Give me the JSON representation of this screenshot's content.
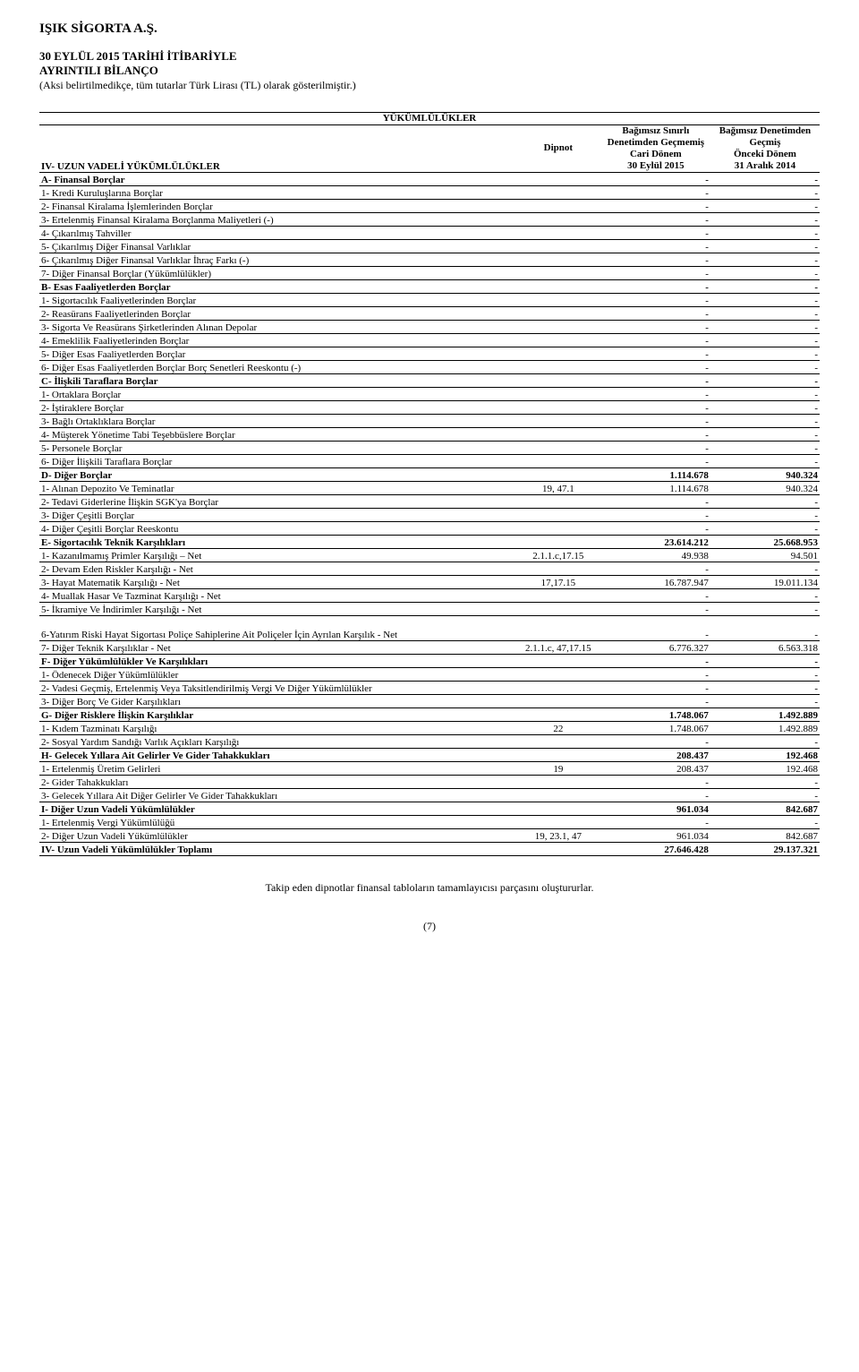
{
  "company": "IŞIK SİGORTA A.Ş.",
  "title_l1": "30 EYLÜL 2015 TARİHİ İTİBARİYLE",
  "title_l2": "AYRINTILI BİLANÇO",
  "subtitle": "(Aksi belirtilmedikçe, tüm tutarlar Türk Lirası (TL) olarak gösterilmiştir.)",
  "section_title": "YÜKÜMLÜLÜKLER",
  "col_header": "IV- UZUN VADELİ YÜKÜMLÜLÜKLER",
  "dipnot_header": "Dipnot",
  "cur_h1": "Bağımsız Sınırlı",
  "cur_h2": "Denetimden Geçmemiş",
  "cur_h3": "Cari Dönem",
  "cur_h4": "30 Eylül 2015",
  "prev_h1": "Bağımsız Denetimden",
  "prev_h2": "Geçmiş",
  "prev_h3": "Önceki Dönem",
  "prev_h4": "31 Aralık 2014",
  "rows": [
    {
      "l": "A- Finansal Borçlar",
      "d": "",
      "c": "-",
      "p": "-",
      "b": true
    },
    {
      "l": "1- Kredi Kuruluşlarına Borçlar",
      "d": "",
      "c": "-",
      "p": "-"
    },
    {
      "l": "2- Finansal Kiralama İşlemlerinden Borçlar",
      "d": "",
      "c": "-",
      "p": "-"
    },
    {
      "l": "3- Ertelenmiş Finansal Kiralama Borçlanma Maliyetleri (-)",
      "d": "",
      "c": "-",
      "p": "-"
    },
    {
      "l": "4- Çıkarılmış Tahviller",
      "d": "",
      "c": "-",
      "p": "-"
    },
    {
      "l": "5- Çıkarılmış Diğer Finansal Varlıklar",
      "d": "",
      "c": "-",
      "p": "-"
    },
    {
      "l": "6- Çıkarılmış Diğer Finansal Varlıklar İhraç Farkı (-)",
      "d": "",
      "c": "-",
      "p": "-"
    },
    {
      "l": "7- Diğer Finansal Borçlar (Yükümlülükler)",
      "d": "",
      "c": "-",
      "p": "-"
    },
    {
      "l": "B- Esas Faaliyetlerden Borçlar",
      "d": "",
      "c": "-",
      "p": "-",
      "b": true
    },
    {
      "l": "1- Sigortacılık Faaliyetlerinden Borçlar",
      "d": "",
      "c": "-",
      "p": "-"
    },
    {
      "l": "2- Reasürans Faaliyetlerinden Borçlar",
      "d": "",
      "c": "-",
      "p": "-"
    },
    {
      "l": "3- Sigorta Ve Reasürans Şirketlerinden Alınan Depolar",
      "d": "",
      "c": "-",
      "p": "-"
    },
    {
      "l": "4- Emeklilik Faaliyetlerinden Borçlar",
      "d": "",
      "c": "-",
      "p": "-"
    },
    {
      "l": "5- Diğer Esas Faaliyetlerden Borçlar",
      "d": "",
      "c": "-",
      "p": "-"
    },
    {
      "l": "6- Diğer Esas Faaliyetlerden Borçlar Borç Senetleri Reeskontu (-)",
      "d": "",
      "c": "-",
      "p": "-"
    },
    {
      "l": "C- İlişkili Taraflara Borçlar",
      "d": "",
      "c": "-",
      "p": "-",
      "b": true
    },
    {
      "l": "1- Ortaklara Borçlar",
      "d": "",
      "c": "-",
      "p": "-"
    },
    {
      "l": "2- İştiraklere Borçlar",
      "d": "",
      "c": "-",
      "p": "-"
    },
    {
      "l": "3- Bağlı Ortaklıklara Borçlar",
      "d": "",
      "c": "-",
      "p": "-"
    },
    {
      "l": "4- Müşterek Yönetime Tabi Teşebbüslere Borçlar",
      "d": "",
      "c": "-",
      "p": "-"
    },
    {
      "l": "5- Personele Borçlar",
      "d": "",
      "c": "-",
      "p": "-"
    },
    {
      "l": "6- Diğer İlişkili Taraflara Borçlar",
      "d": "",
      "c": "-",
      "p": "-"
    },
    {
      "l": "D- Diğer Borçlar",
      "d": "",
      "c": "1.114.678",
      "p": "940.324",
      "b": true
    },
    {
      "l": "1- Alınan Depozito Ve Teminatlar",
      "d": "19, 47.1",
      "c": "1.114.678",
      "p": "940.324"
    },
    {
      "l": "2- Tedavi Giderlerine İlişkin SGK'ya Borçlar",
      "d": "",
      "c": "-",
      "p": "-"
    },
    {
      "l": "3- Diğer Çeşitli Borçlar",
      "d": "",
      "c": "-",
      "p": "-"
    },
    {
      "l": "4- Diğer Çeşitli Borçlar Reeskontu",
      "d": "",
      "c": "-",
      "p": "-"
    },
    {
      "l": "E- Sigortacılık Teknik Karşılıkları",
      "d": "",
      "c": "23.614.212",
      "p": "25.668.953",
      "b": true
    },
    {
      "l": "1- Kazanılmamış Primler Karşılığı – Net",
      "d": "2.1.1.c,17.15",
      "c": "49.938",
      "p": "94.501"
    },
    {
      "l": "2- Devam Eden Riskler Karşılığı - Net",
      "d": "",
      "c": "-",
      "p": "-"
    },
    {
      "l": "3- Hayat Matematik Karşılığı - Net",
      "d": "17,17.15",
      "c": "16.787.947",
      "p": "19.011.134"
    },
    {
      "l": "4- Muallak Hasar Ve Tazminat Karşılığı - Net",
      "d": "",
      "c": "-",
      "p": "-"
    },
    {
      "l": "5- İkramiye Ve İndirimler Karşılığı - Net",
      "d": "",
      "c": "-",
      "p": "-"
    },
    {
      "l": "6-Yatırım Riski Hayat Sigortası Poliçe Sahiplerine Ait Poliçeler İçin Ayrılan Karşılık - Net",
      "d": "",
      "c": "-",
      "p": "-",
      "tall": true
    },
    {
      "l": "7- Diğer Teknik Karşılıklar - Net",
      "d": "2.1.1.c, 47,17.15",
      "c": "6.776.327",
      "p": "6.563.318"
    },
    {
      "l": "F- Diğer Yükümlülükler Ve Karşılıkları",
      "d": "",
      "c": "-",
      "p": "-",
      "b": true
    },
    {
      "l": "1- Ödenecek Diğer Yükümlülükler",
      "d": "",
      "c": "-",
      "p": "-"
    },
    {
      "l": "2- Vadesi Geçmiş, Ertelenmiş Veya Taksitlendirilmiş Vergi Ve Diğer Yükümlülükler",
      "d": "",
      "c": "-",
      "p": "-"
    },
    {
      "l": "3- Diğer Borç Ve Gider Karşılıkları",
      "d": "",
      "c": "-",
      "p": "-"
    },
    {
      "l": "G- Diğer Risklere İlişkin Karşılıklar",
      "d": "",
      "c": "1.748.067",
      "p": "1.492.889",
      "b": true
    },
    {
      "l": "1- Kıdem Tazminatı Karşılığı",
      "d": "22",
      "c": "1.748.067",
      "p": "1.492.889"
    },
    {
      "l": "2- Sosyal Yardım Sandığı Varlık Açıkları Karşılığı",
      "d": "",
      "c": "-",
      "p": "-"
    },
    {
      "l": "H- Gelecek Yıllara Ait Gelirler Ve Gider Tahakkukları",
      "d": "",
      "c": "208.437",
      "p": "192.468",
      "b": true
    },
    {
      "l": "1- Ertelenmiş Üretim Gelirleri",
      "d": "19",
      "c": "208.437",
      "p": "192.468"
    },
    {
      "l": "2- Gider Tahakkukları",
      "d": "",
      "c": "-",
      "p": "-"
    },
    {
      "l": "3- Gelecek Yıllara Ait Diğer Gelirler Ve Gider Tahakkukları",
      "d": "",
      "c": "-",
      "p": "-"
    },
    {
      "l": "I- Diğer Uzun Vadeli Yükümlülükler",
      "d": "",
      "c": "961.034",
      "p": "842.687",
      "b": true
    },
    {
      "l": "1- Ertelenmiş Vergi Yükümlülüğü",
      "d": "",
      "c": "-",
      "p": "-"
    },
    {
      "l": "2- Diğer Uzun Vadeli Yükümlülükler",
      "d": "19, 23.1, 47",
      "c": "961.034",
      "p": "842.687"
    },
    {
      "l": "IV- Uzun Vadeli Yükümlülükler Toplamı",
      "d": "",
      "c": "27.646.428",
      "p": "29.137.321",
      "b": true,
      "total": true
    }
  ],
  "footer_note": "Takip eden dipnotlar finansal tabloların tamamlayıcısı parçasını oluştururlar.",
  "page_num": "(7)"
}
